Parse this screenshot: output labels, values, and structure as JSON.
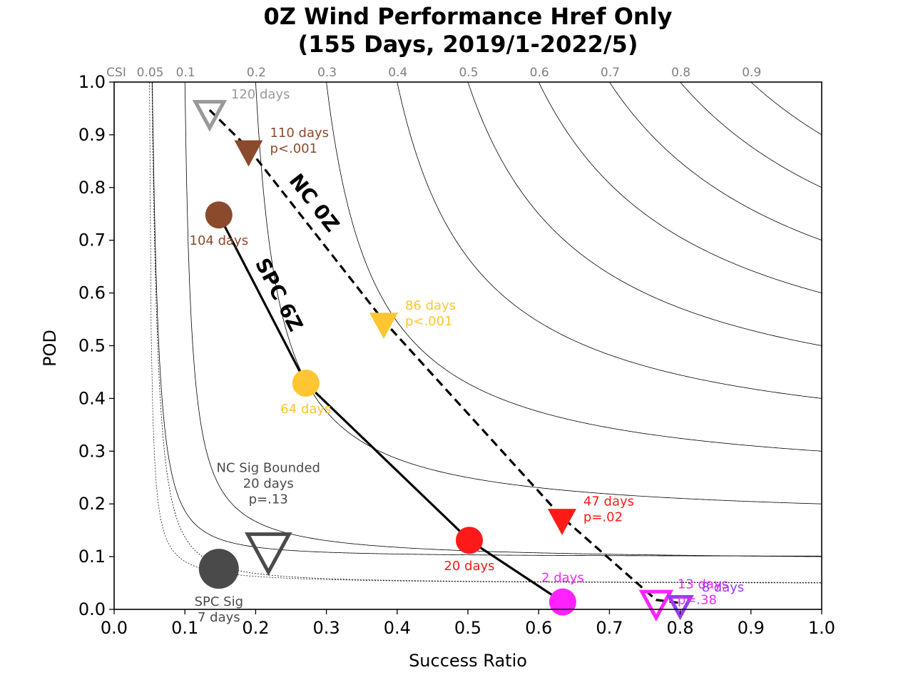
{
  "chart_data": {
    "type": "scatter",
    "title_lines": [
      "0Z Wind Performance Href Only",
      "(155 Days, 2019/1-2022/5)"
    ],
    "xlabel": "Success Ratio",
    "ylabel": "POD",
    "xlim": [
      0.0,
      1.0
    ],
    "ylim": [
      0.0,
      1.0
    ],
    "xticks": [
      "0.0",
      "0.1",
      "0.2",
      "0.3",
      "0.4",
      "0.5",
      "0.6",
      "0.7",
      "0.8",
      "0.9",
      "1.0"
    ],
    "yticks": [
      "0.0",
      "0.1",
      "0.2",
      "0.3",
      "0.4",
      "0.5",
      "0.6",
      "0.7",
      "0.8",
      "0.9",
      "1.0"
    ],
    "csi": {
      "prefix": "CSI",
      "levels": [
        0.05,
        0.1,
        0.2,
        0.3,
        0.4,
        0.5,
        0.6,
        0.7,
        0.8,
        0.9
      ],
      "labels": [
        "0.05",
        "0.1",
        "0.2",
        "0.3",
        "0.4",
        "0.5",
        "0.6",
        "0.7",
        "0.8",
        "0.9"
      ],
      "color": "#000000"
    },
    "background_curves": [
      {
        "sr": 0.95,
        "fixed_pod": 0.1,
        "style": "solid"
      },
      {
        "sr": 0.95,
        "fixed_pod": 0.05,
        "style": "dotted"
      }
    ],
    "series": [
      {
        "id": "spc",
        "line_label": "SPC 6Z",
        "line_style": "solid",
        "marker": "circle",
        "points": [
          {
            "sr": 0.148,
            "pod": 0.748,
            "color": "#8B4A2B",
            "labels": [
              "104 days"
            ],
            "label_color": "#8B4A2B",
            "label_pos": "below",
            "filled": true,
            "size": "normal"
          },
          {
            "sr": 0.271,
            "pod": 0.429,
            "color": "#FFC532",
            "labels": [
              "64 days"
            ],
            "label_color": "#FFC532",
            "label_pos": "below",
            "filled": true,
            "size": "normal"
          },
          {
            "sr": 0.502,
            "pod": 0.131,
            "color": "#FF1A1A",
            "labels": [
              "20 days"
            ],
            "label_color": "#FF1A1A",
            "label_pos": "below",
            "filled": true,
            "size": "normal"
          },
          {
            "sr": 0.634,
            "pod": 0.014,
            "color": "#FF22FF",
            "labels": [
              "2 days"
            ],
            "label_color": "#FF22FF",
            "label_pos": "above",
            "filled": true,
            "size": "normal"
          }
        ]
      },
      {
        "id": "nc",
        "line_label": "NC 0Z",
        "line_style": "dashed",
        "marker": "triangle-down",
        "points": [
          {
            "sr": 0.135,
            "pod": 0.947,
            "color": "#999999",
            "labels": [
              "120 days"
            ],
            "label_color": "#999999",
            "label_pos": "right",
            "filled": false,
            "size": "normal"
          },
          {
            "sr": 0.19,
            "pod": 0.874,
            "color": "#8B4A2B",
            "labels": [
              "110 days",
              "p<.001"
            ],
            "label_color": "#8B4A2B",
            "label_pos": "right",
            "filled": true,
            "size": "normal"
          },
          {
            "sr": 0.381,
            "pod": 0.547,
            "color": "#FFC532",
            "labels": [
              "86 days",
              "p<.001"
            ],
            "label_color": "#FFC532",
            "label_pos": "right",
            "filled": true,
            "size": "normal"
          },
          {
            "sr": 0.633,
            "pod": 0.175,
            "color": "#FF1A1A",
            "labels": [
              "47 days",
              "p=.02"
            ],
            "label_color": "#FF1A1A",
            "label_pos": "right",
            "filled": true,
            "size": "normal"
          },
          {
            "sr": 0.766,
            "pod": 0.018,
            "color": "#FF22FF",
            "labels": [
              "13 days",
              "p=.38"
            ],
            "label_color": "#FF22FF",
            "label_pos": "right",
            "filled": false,
            "size": "normal"
          },
          {
            "sr": 0.8,
            "pod": 0.012,
            "color": "#9B3BF0",
            "labels": [
              "8 days"
            ],
            "label_color": "#9B3BF0",
            "label_pos": "right",
            "filled": false,
            "size": "small"
          }
        ]
      }
    ],
    "extra_points": [
      {
        "id": "spc-sig",
        "marker": "circle",
        "sr": 0.148,
        "pod": 0.077,
        "color": "#4A4A4A",
        "filled": true,
        "size": "large",
        "labels": [
          "SPC Sig",
          "7 days"
        ],
        "label_color": "#4A4A4A",
        "label_pos": "below"
      },
      {
        "id": "nc-sig-bounded",
        "marker": "triangle-down",
        "sr": 0.218,
        "pod": 0.12,
        "color": "#4A4A4A",
        "filled": false,
        "size": "large",
        "labels": [
          "NC Sig Bounded",
          "20 days",
          "p=.13"
        ],
        "label_color": "#4A4A4A",
        "label_pos": "above"
      }
    ]
  }
}
